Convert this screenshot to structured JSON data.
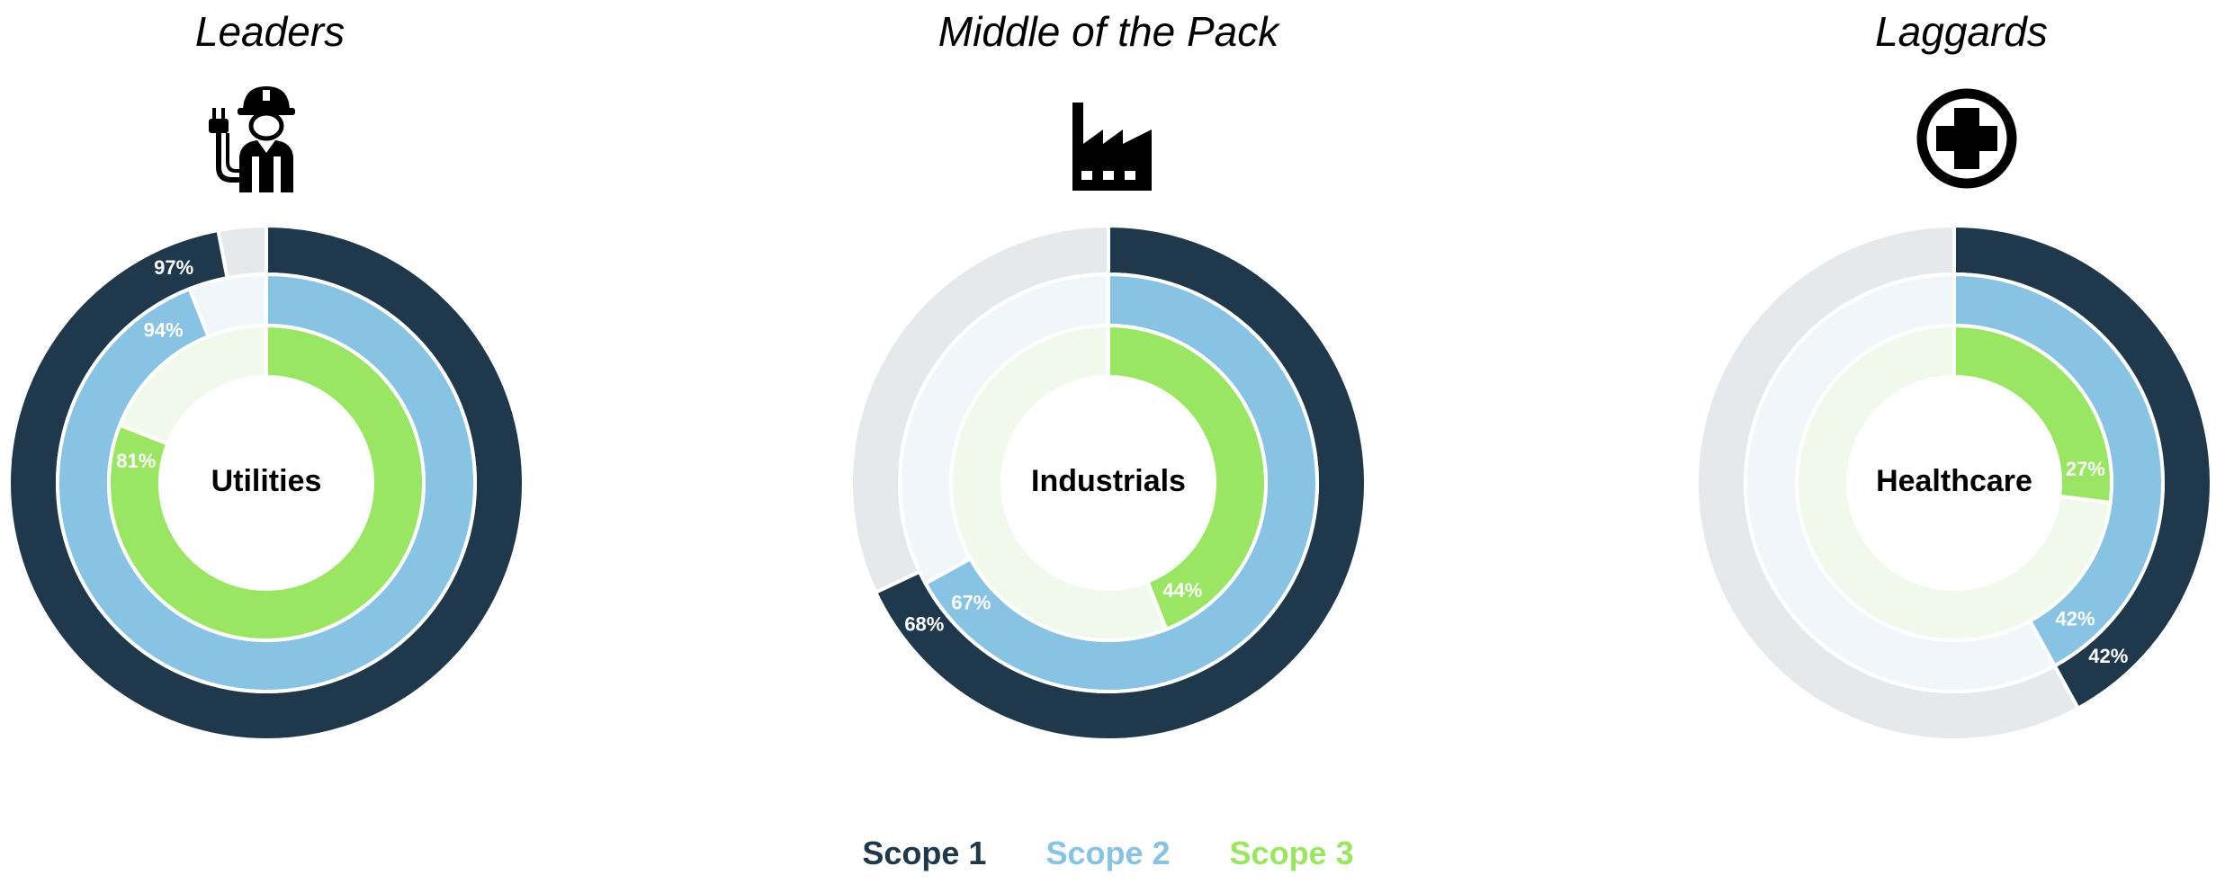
{
  "chart_data": [
    {
      "type": "donut",
      "title": "Leaders",
      "icon": "utility-worker-plug-icon",
      "center_label": "Utilities",
      "series": [
        {
          "name": "Scope 1",
          "value": 97,
          "label": "97%"
        },
        {
          "name": "Scope 2",
          "value": 94,
          "label": "94%"
        },
        {
          "name": "Scope 3",
          "value": 81,
          "label": "81%"
        }
      ]
    },
    {
      "type": "donut",
      "title": "Middle of the Pack",
      "icon": "factory-icon",
      "center_label": "Industrials",
      "series": [
        {
          "name": "Scope 1",
          "value": 68,
          "label": "68%"
        },
        {
          "name": "Scope 2",
          "value": 67,
          "label": "67%"
        },
        {
          "name": "Scope 3",
          "value": 44,
          "label": "44%"
        }
      ]
    },
    {
      "type": "donut",
      "title": "Laggards",
      "icon": "medical-cross-icon",
      "center_label": "Healthcare",
      "series": [
        {
          "name": "Scope 1",
          "value": 42,
          "label": "42%"
        },
        {
          "name": "Scope 2",
          "value": 42,
          "label": "42%"
        },
        {
          "name": "Scope 3",
          "value": 27,
          "label": "27%"
        }
      ]
    }
  ],
  "legend": [
    {
      "name": "Scope 1",
      "color": "#20384b"
    },
    {
      "name": "Scope 2",
      "color": "#88c3e3"
    },
    {
      "name": "Scope 3",
      "color": "#9be564"
    }
  ],
  "colors": {
    "scope1": "#20384b",
    "scope1_track": "#e6e9ec",
    "scope2": "#88c3e3",
    "scope2_track": "#f1f6fb",
    "scope3": "#9be564",
    "scope3_track": "#f1f9ec"
  }
}
